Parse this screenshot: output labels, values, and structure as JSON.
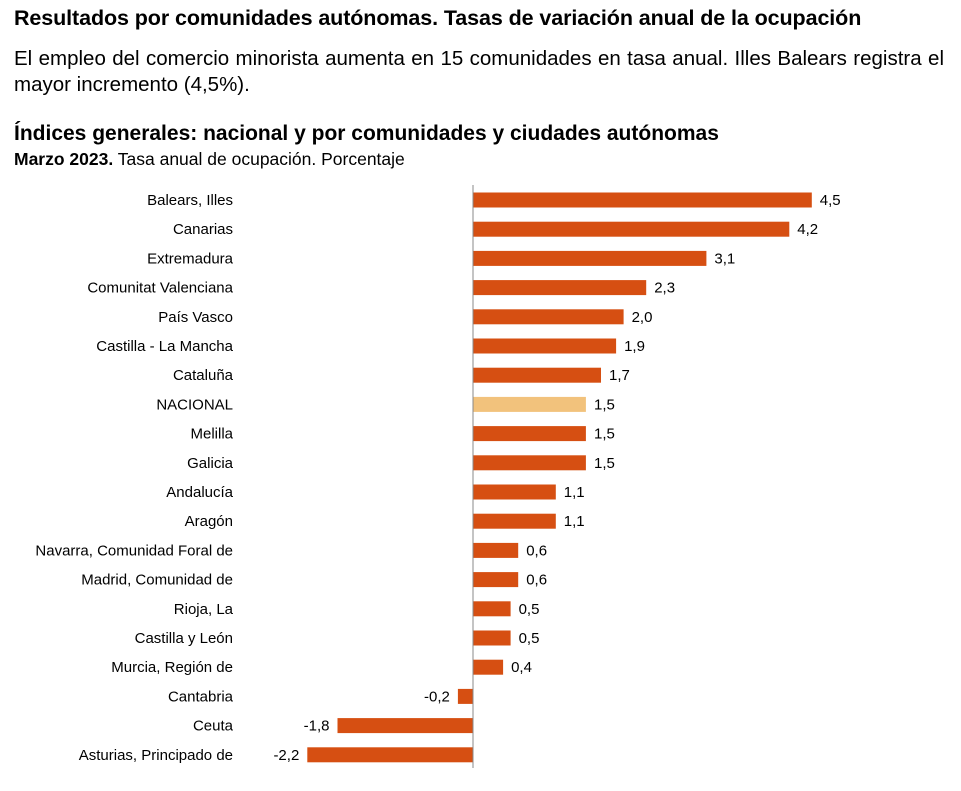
{
  "header": {
    "title": "Resultados por comunidades autónomas. Tasas de variación anual de la ocupación",
    "subtitle": "El empleo del comercio minorista aumenta en 15 comunidades en tasa anual. Illes Balears registra el mayor incremento (4,5%)."
  },
  "chart_data": {
    "type": "bar",
    "orientation": "horizontal",
    "title": "Índices generales: nacional y por comunidades y ciudades autónomas",
    "subtitle_bold": "Marzo 2023.",
    "subtitle": "Tasa anual de ocupación. Porcentaje",
    "categories": [
      "Balears, Illes",
      "Canarias",
      "Extremadura",
      "Comunitat Valenciana",
      "País Vasco",
      "Castilla - La Mancha",
      "Cataluña",
      "NACIONAL",
      "Melilla",
      "Galicia",
      "Andalucía",
      "Aragón",
      "Navarra, Comunidad Foral de",
      "Madrid, Comunidad de",
      "Rioja, La",
      "Castilla y León",
      "Murcia, Región de",
      "Cantabria",
      "Ceuta",
      "Asturias, Principado de"
    ],
    "values": [
      4.5,
      4.2,
      3.1,
      2.3,
      2.0,
      1.9,
      1.7,
      1.5,
      1.5,
      1.5,
      1.1,
      1.1,
      0.6,
      0.6,
      0.5,
      0.5,
      0.4,
      -0.2,
      -1.8,
      -2.2
    ],
    "value_labels": [
      "4,5",
      "4,2",
      "3,1",
      "2,3",
      "2,0",
      "1,9",
      "1,7",
      "1,5",
      "1,5",
      "1,5",
      "1,1",
      "1,1",
      "0,6",
      "0,6",
      "0,5",
      "0,5",
      "0,4",
      "-0,2",
      "-1,8",
      "-2,2"
    ],
    "highlight_category": "NACIONAL",
    "colors": {
      "bar": "#d64f12",
      "highlight": "#f2c27c",
      "axis": "#888888"
    }
  }
}
